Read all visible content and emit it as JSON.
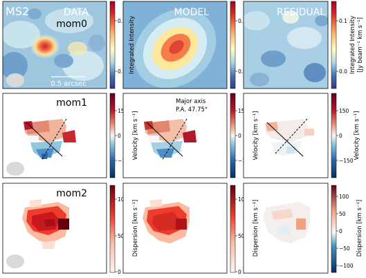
{
  "figure": {
    "source_label": "MS2",
    "columns": [
      "DATA",
      "MODEL",
      "RESIDUAL"
    ],
    "rows": [
      "mom0",
      "mom1",
      "mom2"
    ],
    "scale_bar_label": "0.5 arcsec",
    "model_annotation": [
      "Major axis",
      "P.A. 47.75°"
    ]
  },
  "colorbars": {
    "mom0": {
      "label_line1": "Integrated Intensity",
      "label_line2": "[Jy beam⁻¹ km s⁻¹]",
      "ticks": [
        "0.0",
        "0.1"
      ],
      "colormap": "RdYlBu_r",
      "range": [
        -0.02,
        0.16
      ]
    },
    "mom1": {
      "label": "Velocity [km s⁻¹]",
      "ticks": [
        "150",
        "0",
        "−150"
      ],
      "colormap": "RdBu_r",
      "range": [
        -250,
        250
      ]
    },
    "mom2": {
      "label_data": "Dispersion [km s⁻¹]",
      "ticks_data": [
        "100",
        "50",
        "0"
      ],
      "label_residual": "Dispersion [km s⁻¹]",
      "ticks_residual": [
        "100",
        "50",
        "0",
        "−50",
        "−100"
      ],
      "colormap_data": "Reds",
      "colormap_residual": "RdBu_r"
    }
  },
  "chart_data": {
    "type": "heatmap",
    "description_grid": "3 rows (moments) x 3 columns (data, model, residual) of spatial maps",
    "position_angle_deg": 47.75,
    "mom0_peak_data": 0.14,
    "mom0_peak_model": 0.13,
    "mom1_range": [
      -150,
      150
    ],
    "mom2_data_max": 120
  },
  "colors": {
    "red": "#c8303a",
    "blue": "#3d6fb0",
    "beam": "#d9d9d9"
  }
}
